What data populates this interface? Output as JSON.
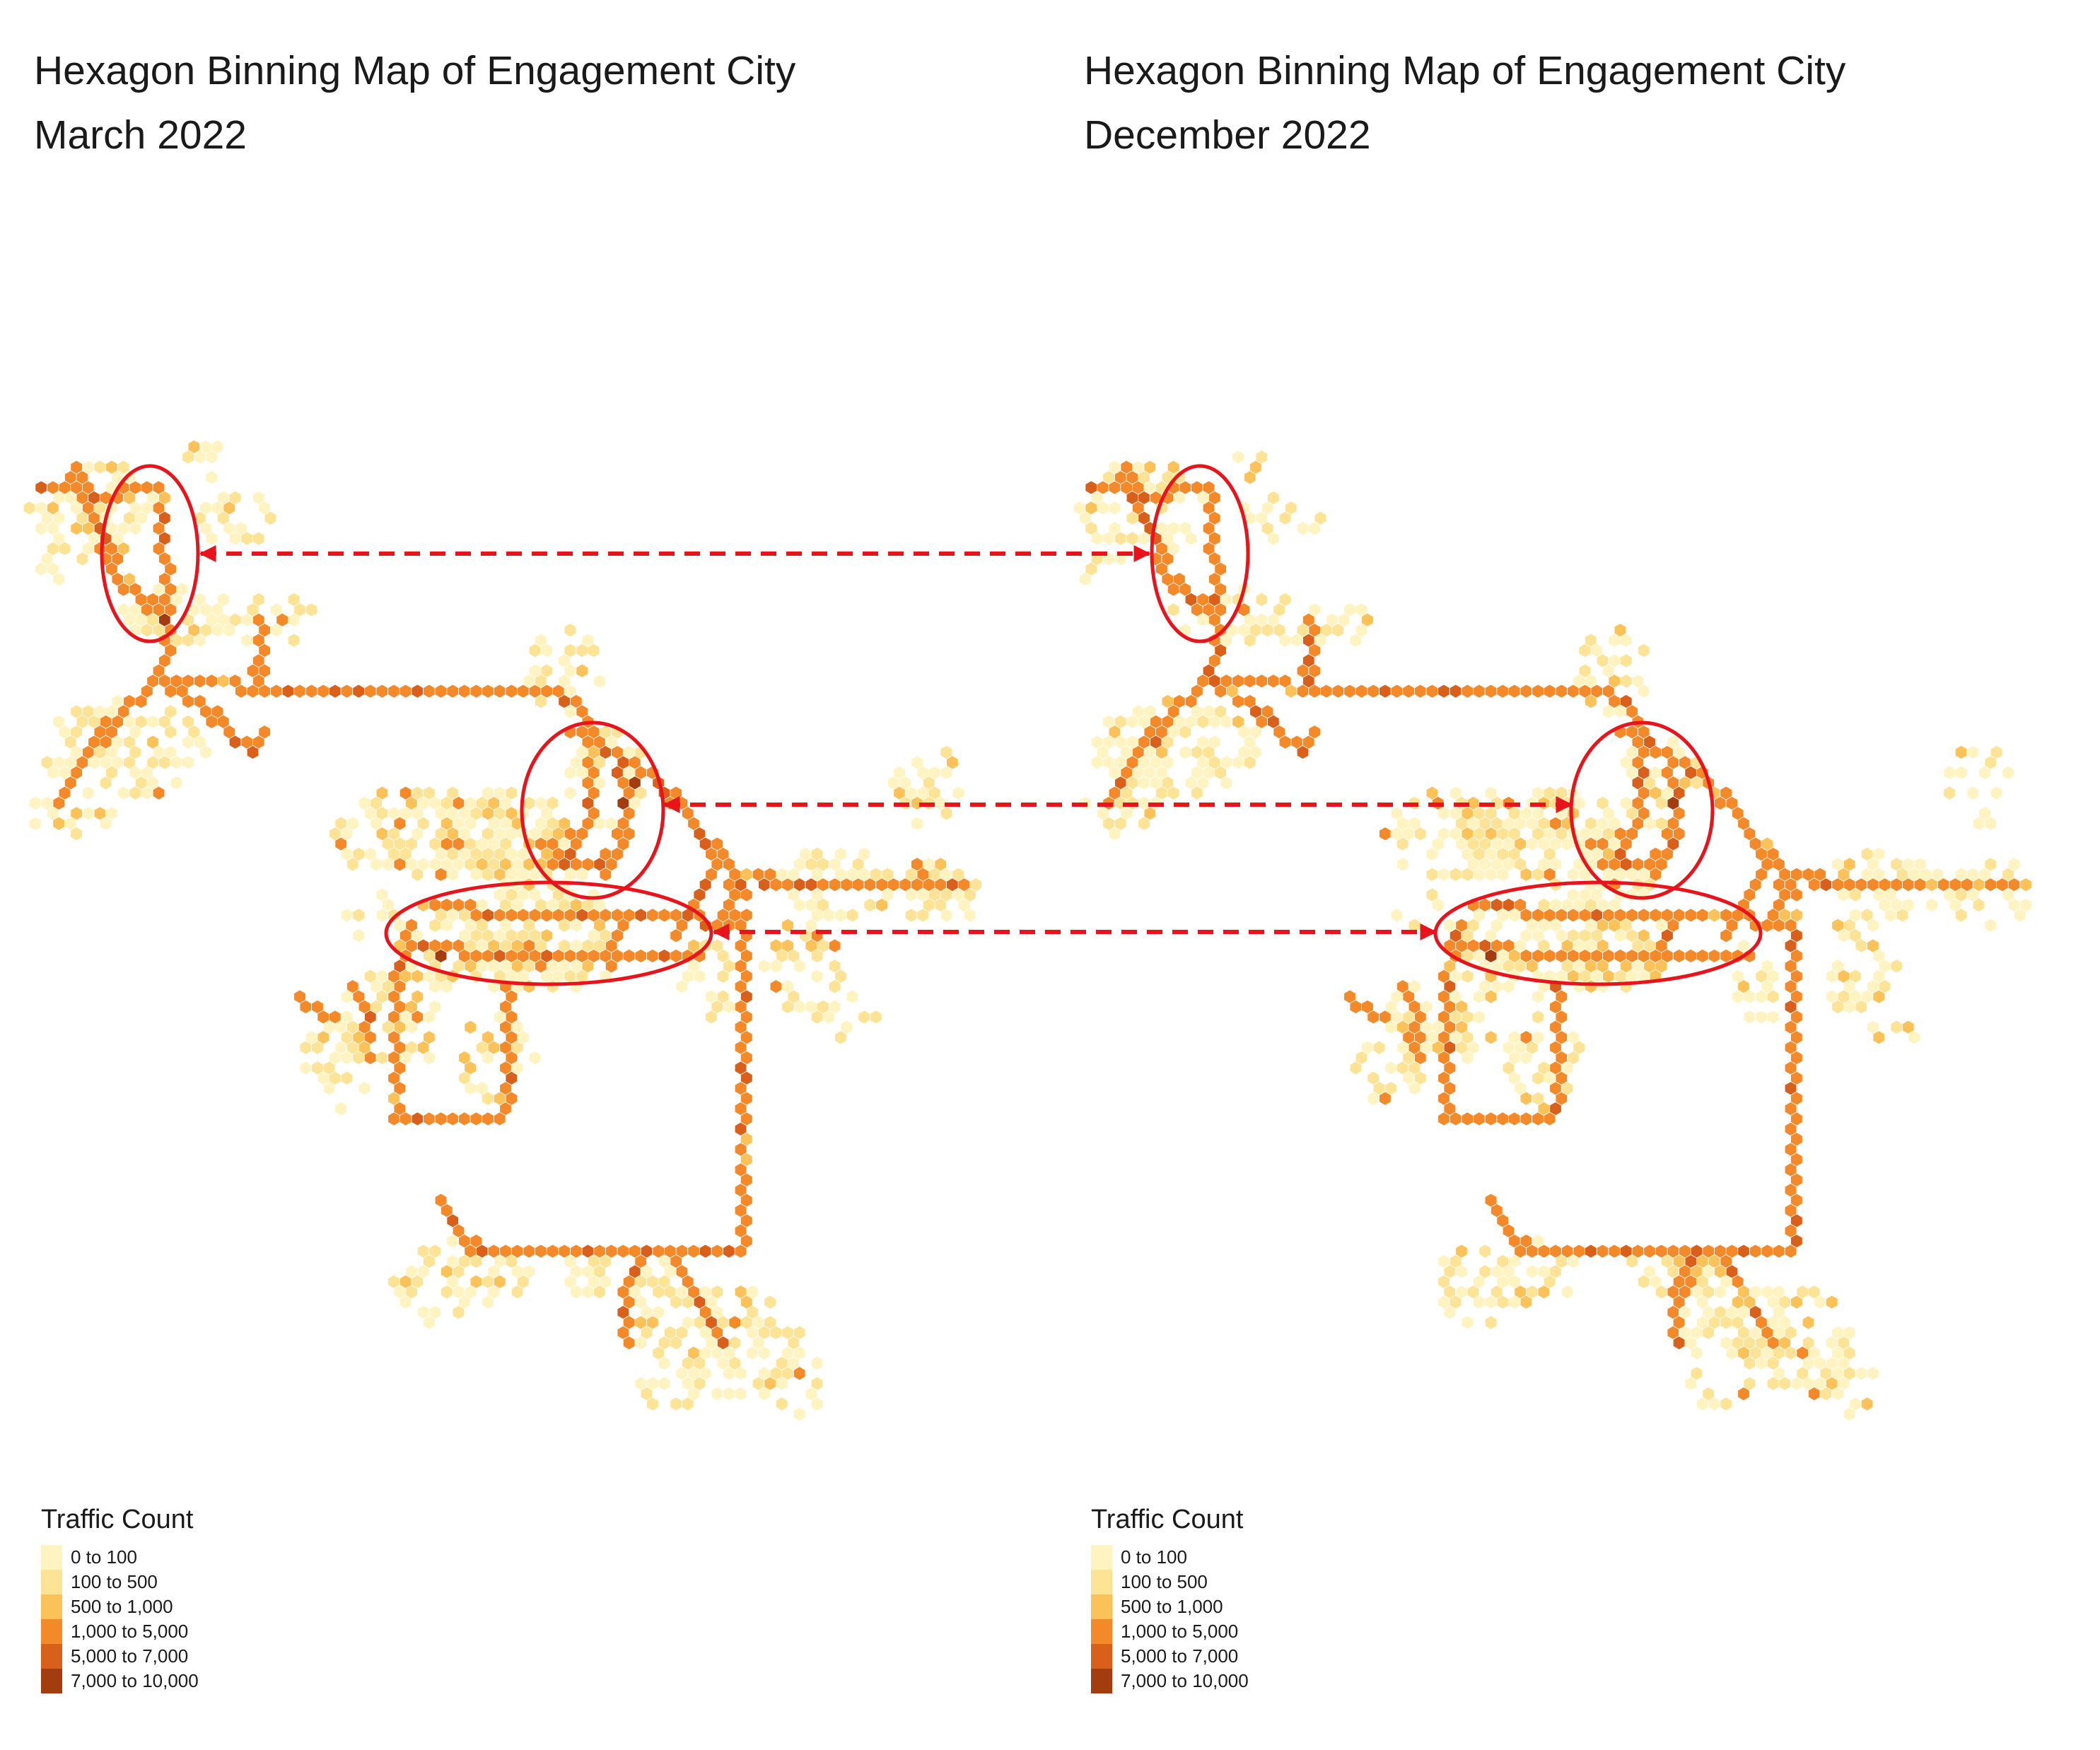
{
  "panels": [
    {
      "id": "march",
      "title_line1": "Hexagon Binning Map of Engagement City",
      "title_line2": "March 2022"
    },
    {
      "id": "december",
      "title_line1": "Hexagon Binning Map of Engagement City",
      "title_line2": "December 2022"
    }
  ],
  "legend": {
    "title": "Traffic Count",
    "items": [
      {
        "label": "0 to 100",
        "color": "#fff3c2"
      },
      {
        "label": "100 to 500",
        "color": "#fde396"
      },
      {
        "label": "500 to 1,000",
        "color": "#fcc25a"
      },
      {
        "label": "1,000 to 5,000",
        "color": "#f4892a"
      },
      {
        "label": "5,000 to 7,000",
        "color": "#d9601b"
      },
      {
        "label": "7,000 to 10,000",
        "color": "#a33d0f"
      }
    ]
  },
  "annotation_colors": {
    "highlight": "#e8141b",
    "hex_stroke": "#ffffff"
  }
}
